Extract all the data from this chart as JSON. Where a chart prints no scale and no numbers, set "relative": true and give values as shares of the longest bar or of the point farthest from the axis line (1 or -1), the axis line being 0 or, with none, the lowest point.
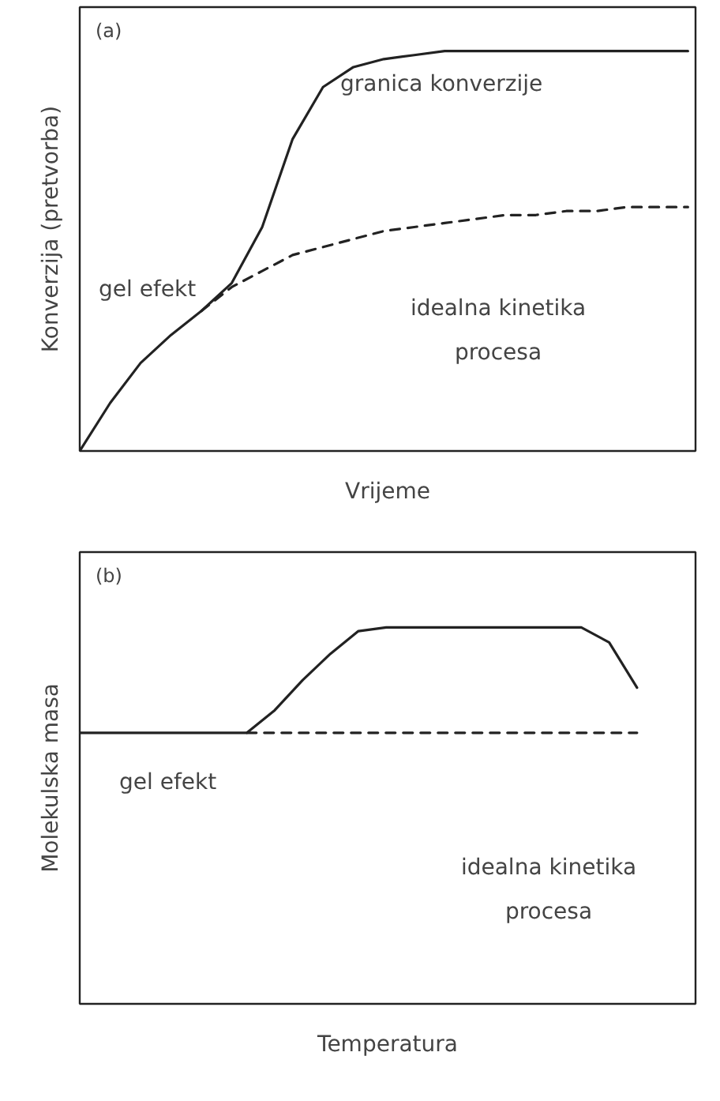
{
  "chart_data": [
    {
      "type": "line",
      "relative": true,
      "title": "(a)",
      "xlabel": "Vrijeme",
      "ylabel": "Konverzija (pretvorba)",
      "categories": [
        null,
        null,
        null,
        null,
        null,
        null,
        null,
        null,
        null,
        null,
        null,
        null,
        null,
        null,
        null,
        null,
        null,
        null,
        null,
        null,
        null
      ],
      "series": [
        {
          "color": "#222222",
          "line_style": "solid",
          "values": [
            0,
            0.12,
            0.22,
            0.29,
            0.35,
            0.42,
            0.56,
            0.78,
            0.91,
            0.96,
            0.98,
            0.99,
            1,
            1,
            1,
            1,
            1,
            1,
            1,
            1,
            1
          ]
        },
        {
          "color": "#222222",
          "line_style": "dashed",
          "values": [
            null,
            null,
            null,
            null,
            0.35,
            0.41,
            0.45,
            0.49,
            0.51,
            0.53,
            0.55,
            0.56,
            0.57,
            0.58,
            0.59,
            0.59,
            0.6,
            0.6,
            0.61,
            0.61,
            0.61
          ]
        }
      ],
      "annotations": [
        "granica konverzije",
        "gel efekt",
        "idealna kinetika\nprocesa"
      ]
    },
    {
      "type": "line",
      "relative": true,
      "title": "(b)",
      "xlabel": "Temperatura",
      "ylabel": "Molekulska masa",
      "categories": [
        null,
        null,
        null,
        null,
        null,
        null,
        null,
        null,
        null,
        null,
        null,
        null,
        null,
        null,
        null,
        null,
        null,
        null,
        null,
        null,
        null
      ],
      "series": [
        {
          "color": "#222222",
          "line_style": "solid",
          "values": [
            0.72,
            0.72,
            0.72,
            0.72,
            0.72,
            0.72,
            0.72,
            0.78,
            0.86,
            0.93,
            0.99,
            1,
            1,
            1,
            1,
            1,
            1,
            1,
            1,
            0.96,
            0.84
          ]
        },
        {
          "color": "#222222",
          "line_style": "dashed",
          "values": [
            null,
            null,
            null,
            null,
            null,
            null,
            0.72,
            0.72,
            0.72,
            0.72,
            0.72,
            0.72,
            0.72,
            0.72,
            0.72,
            0.72,
            0.72,
            0.72,
            0.72,
            0.72,
            0.72
          ]
        }
      ],
      "annotations": [
        "gel efekt",
        "idealna kinetika\nprocesa"
      ]
    }
  ]
}
